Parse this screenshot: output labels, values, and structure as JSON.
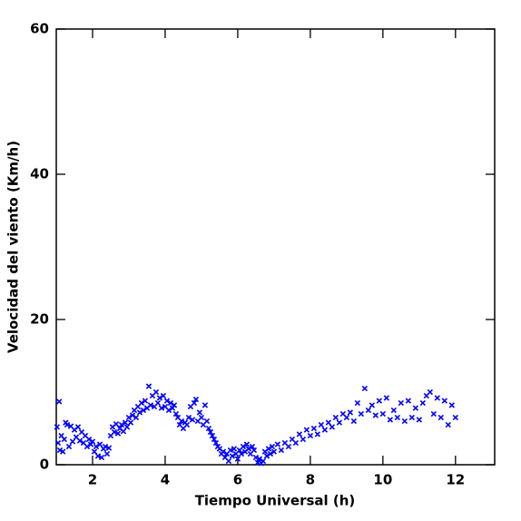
{
  "chart_data": {
    "type": "scatter",
    "xlabel": "Tiempo Universal (h)",
    "ylabel": "Velocidad del viento (Km/h)",
    "x": [
      1.02,
      1.05,
      1.08,
      1.1,
      1.14,
      1.18,
      1.22,
      1.26,
      1.3,
      1.35,
      1.4,
      1.45,
      1.5,
      1.55,
      1.6,
      1.65,
      1.7,
      1.75,
      1.8,
      1.85,
      1.9,
      1.95,
      2.0,
      2.05,
      2.1,
      2.15,
      2.2,
      2.25,
      2.3,
      2.35,
      2.4,
      2.45,
      2.5,
      2.55,
      2.6,
      2.65,
      2.7,
      2.75,
      2.8,
      2.85,
      2.9,
      2.95,
      3.0,
      3.05,
      3.1,
      3.15,
      3.2,
      3.25,
      3.3,
      3.35,
      3.4,
      3.45,
      3.5,
      3.55,
      3.6,
      3.65,
      3.7,
      3.75,
      3.8,
      3.85,
      3.9,
      3.95,
      4.0,
      4.05,
      4.1,
      4.15,
      4.2,
      4.25,
      4.3,
      4.35,
      4.4,
      4.45,
      4.5,
      4.55,
      4.6,
      4.65,
      4.7,
      4.75,
      4.8,
      4.85,
      4.9,
      4.95,
      5.0,
      5.05,
      5.1,
      5.15,
      5.2,
      5.25,
      5.3,
      5.35,
      5.4,
      5.45,
      5.5,
      5.55,
      5.6,
      5.65,
      5.7,
      5.75,
      5.8,
      5.85,
      5.9,
      5.95,
      6.0,
      6.05,
      6.1,
      6.15,
      6.2,
      6.25,
      6.3,
      6.35,
      6.4,
      6.45,
      6.5,
      6.55,
      6.6,
      6.65,
      6.7,
      6.75,
      6.8,
      6.85,
      6.9,
      6.95,
      7.0,
      7.1,
      7.2,
      7.3,
      7.4,
      7.5,
      7.6,
      7.7,
      7.8,
      7.9,
      8.0,
      8.1,
      8.2,
      8.3,
      8.4,
      8.5,
      8.6,
      8.7,
      8.8,
      8.9,
      9.0,
      9.1,
      9.2,
      9.3,
      9.4,
      9.5,
      9.6,
      9.7,
      9.8,
      9.9,
      10.0,
      10.1,
      10.2,
      10.3,
      10.4,
      10.5,
      10.6,
      10.7,
      10.8,
      10.9,
      11.0,
      11.1,
      11.2,
      11.3,
      11.4,
      11.5,
      11.6,
      11.7,
      11.8,
      11.9,
      12.0
    ],
    "series": [
      {
        "color": "#0000ff",
        "values": [
          5.2,
          3,
          8.7,
          2,
          4,
          1.8,
          3.5,
          5.8,
          5.5,
          2.5,
          5.3,
          3.2,
          4.8,
          3.8,
          5.2,
          3.3,
          4.5,
          3,
          4,
          2.5,
          3.5,
          2.8,
          3.2,
          1.8,
          2.5,
          1.2,
          2.8,
          1,
          2.2,
          2.5,
          1.5,
          2.3,
          4,
          5.2,
          4.5,
          5.6,
          4.3,
          5,
          5.5,
          4.6,
          5.8,
          5.2,
          6.5,
          5.8,
          6.8,
          7.5,
          6.5,
          8,
          7.2,
          8.5,
          7.5,
          8.8,
          7.8,
          10.8,
          8.2,
          9.5,
          8,
          10,
          8.5,
          9.2,
          7.8,
          9.5,
          8,
          8.8,
          7.5,
          8.5,
          7.8,
          8.2,
          7,
          6.5,
          5.5,
          6,
          5,
          5.8,
          5.5,
          6.5,
          8,
          6.2,
          8.5,
          9,
          6,
          7.2,
          6.5,
          5.5,
          8.2,
          6,
          5,
          4.5,
          4,
          3.5,
          3,
          2.5,
          2.2,
          1.5,
          1.8,
          1,
          1.5,
          0.5,
          2,
          1.2,
          2.2,
          1.5,
          0.8,
          2,
          1.5,
          2.5,
          1.8,
          2.8,
          2.2,
          1.5,
          2.5,
          2,
          1,
          0.3,
          0.8,
          0.2,
          0.5,
          1.8,
          1.2,
          2.2,
          1.5,
          2.5,
          1.8,
          2.8,
          2,
          3,
          2.5,
          3.5,
          3,
          4.2,
          3.5,
          4.8,
          4,
          5,
          4.2,
          5.5,
          4.8,
          5.8,
          5.2,
          6.5,
          5.8,
          7,
          6.5,
          7.2,
          6,
          8.5,
          7,
          10.5,
          7.5,
          8.2,
          6.8,
          8.8,
          7,
          9.2,
          6.2,
          7.5,
          6.5,
          8.5,
          6,
          8.8,
          6.5,
          7.8,
          6.2,
          8.5,
          9.5,
          10,
          7,
          9.2,
          6.5,
          8.8,
          5.5,
          8.2,
          6.5
        ]
      }
    ],
    "xlim": [
      1,
      13.08
    ],
    "xticks": [
      2,
      4,
      6,
      8,
      10,
      12
    ],
    "ylim": [
      0,
      60
    ],
    "yticks": [
      0,
      20,
      40,
      60
    ]
  }
}
